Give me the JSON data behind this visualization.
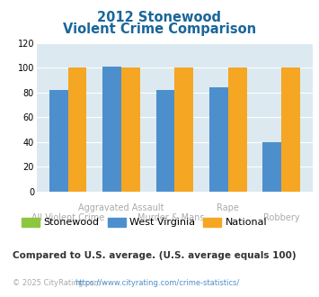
{
  "title_line1": "2012 Stonewood",
  "title_line2": "Violent Crime Comparison",
  "stonewood": [
    0,
    0,
    0,
    0,
    0
  ],
  "west_virginia": [
    82,
    101,
    82,
    84,
    40
  ],
  "national": [
    100,
    100,
    100,
    100,
    100
  ],
  "color_stonewood": "#8dc63f",
  "color_wv": "#4d8fcc",
  "color_national": "#f5a623",
  "ylim": [
    0,
    120
  ],
  "yticks": [
    0,
    20,
    40,
    60,
    80,
    100,
    120
  ],
  "bg_color": "#dce9f0",
  "title_color": "#1a6699",
  "footnote": "Compared to U.S. average. (U.S. average equals 100)",
  "footnote_color": "#333333",
  "copyright_text": "© 2025 CityRating.com - ",
  "copyright_url": "https://www.cityrating.com/crime-statistics/",
  "copyright_color": "#aaaaaa",
  "url_color": "#4d8fcc",
  "xtick_color": "#aaaaaa",
  "label_fontsize": 7.0,
  "bar_width": 0.35
}
